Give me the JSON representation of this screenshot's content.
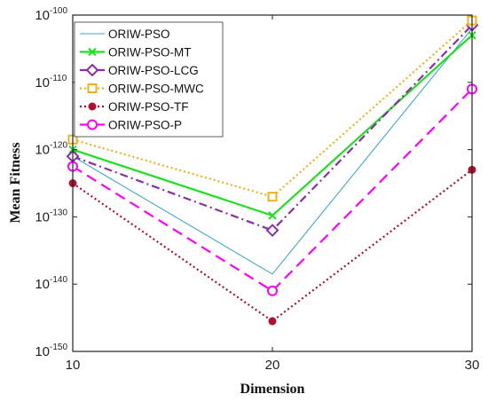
{
  "chart_data": {
    "type": "line",
    "title": "",
    "xlabel": "Dimension",
    "ylabel": "Mean Fitness",
    "x": [
      10,
      20,
      30
    ],
    "xlim": [
      10,
      30
    ],
    "xticks": [
      "10",
      "20",
      "30"
    ],
    "yscale": "log",
    "ylim_exponent": [
      -150,
      -100
    ],
    "ytick_base": "10",
    "ytick_exponents": [
      "-100",
      "-110",
      "-120",
      "-130",
      "-140",
      "-150"
    ],
    "grid": false,
    "legend_position": "top-left",
    "series": [
      {
        "name": "ORIW-PSO",
        "color": "#3fa7d6",
        "dash": "solid",
        "marker": "none",
        "log10_values": [
          -121,
          -138.5,
          -102
        ]
      },
      {
        "name": "ORIW-PSO-MT",
        "color": "#1fe01f",
        "dash": "solid",
        "marker": "x",
        "log10_values": [
          -120,
          -129.8,
          -103
        ]
      },
      {
        "name": "ORIW-PSO-LCG",
        "color": "#8b2fa8",
        "dash": "dashdot",
        "marker": "diamond",
        "log10_values": [
          -121,
          -132,
          -101.5
        ]
      },
      {
        "name": "ORIW-PSO-MWC",
        "color": "#f2b01e",
        "dash": "dotted",
        "marker": "square",
        "log10_values": [
          -118.5,
          -127,
          -100.8
        ]
      },
      {
        "name": "ORIW-PSO-TF",
        "color": "#b01030",
        "dash": "dotted",
        "marker": "filled-circle",
        "log10_values": [
          -125,
          -145.5,
          -123
        ]
      },
      {
        "name": "ORIW-PSO-P",
        "color": "#ff00ff",
        "dash": "dashed",
        "marker": "open-circle",
        "log10_values": [
          -122.5,
          -141,
          -111
        ]
      }
    ]
  }
}
